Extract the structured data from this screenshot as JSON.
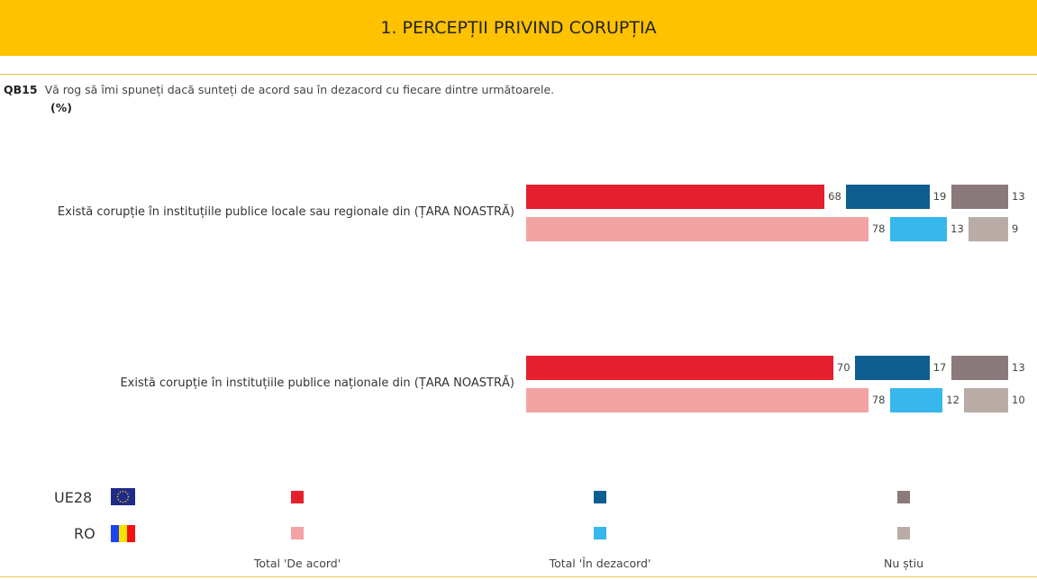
{
  "header": {
    "title": "1. PERCEPȚII PRIVIND CORUPȚIA"
  },
  "question": {
    "code": "QB15",
    "text": "Vă rog să îmi spuneți dacă sunteți de acord sau în dezacord cu fiecare dintre următoarele.",
    "unit": "(%)"
  },
  "colors": {
    "ue": [
      "#e4202f",
      "#0e5f8f",
      "#8a7a7c"
    ],
    "ro": [
      "#f4a3a3",
      "#37b7ec",
      "#b9aca6"
    ]
  },
  "chart_data": {
    "type": "bar",
    "stacked": false,
    "orientation": "horizontal",
    "categories": [
      "Există corupție în instituțiile publice locale sau regionale din (ȚARA NOASTRĂ)",
      "Există corupție în instituțiile publice naționale din (ȚARA NOASTRĂ)"
    ],
    "series_groups": [
      "UE28",
      "RO"
    ],
    "legend": [
      "Total 'De acord'",
      "Total 'În dezacord'",
      "Nu știu"
    ],
    "values": {
      "UE28": [
        [
          68,
          19,
          13
        ],
        [
          70,
          17,
          13
        ]
      ],
      "RO": [
        [
          78,
          13,
          9
        ],
        [
          78,
          12,
          10
        ]
      ]
    }
  },
  "legend": {
    "groups": [
      "UE28",
      "RO"
    ],
    "labels": [
      "Total 'De acord'",
      "Total 'În dezacord'",
      "Nu știu"
    ]
  }
}
